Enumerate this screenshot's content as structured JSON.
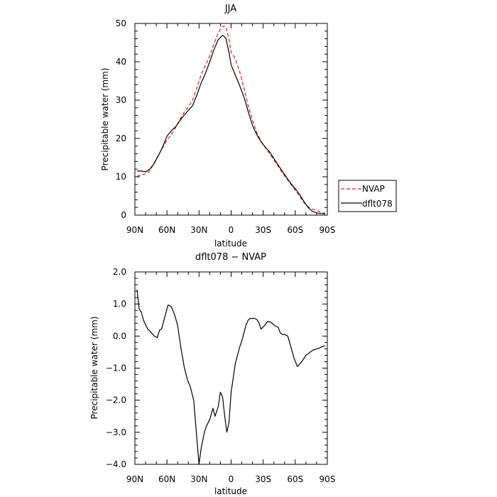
{
  "chart_data": [
    {
      "type": "line",
      "title": "JJA",
      "xlabel": "latitude",
      "ylabel": "Precipitable water (mm)",
      "xlim": [
        -90,
        90
      ],
      "ylim": [
        0,
        50
      ],
      "x_tick_values": [
        -90,
        -60,
        -30,
        0,
        30,
        60,
        90
      ],
      "x_tick_labels": [
        "90N",
        "60N",
        "30N",
        "0",
        "30S",
        "60S",
        "90S"
      ],
      "y_tick_values": [
        0,
        10,
        20,
        30,
        40,
        50
      ],
      "y_tick_labels": [
        "0",
        "10",
        "20",
        "30",
        "40",
        "50"
      ],
      "legend_position": "outside-right",
      "series": [
        {
          "name": "NVAP",
          "color": "#e41a1c",
          "style": "dashed",
          "x": [
            -88,
            -84,
            -80,
            -76,
            -72,
            -68,
            -64,
            -60,
            -56,
            -52,
            -48,
            -44,
            -40,
            -36,
            -32,
            -28,
            -24,
            -20,
            -16,
            -12,
            -8,
            -5,
            -2,
            0,
            4,
            8,
            12,
            16,
            20,
            24,
            28,
            32,
            36,
            40,
            44,
            48,
            52,
            56,
            60,
            64,
            68,
            72,
            76,
            80,
            84,
            88
          ],
          "y": [
            10.1,
            10.6,
            10.7,
            11.6,
            13.6,
            15.6,
            17.6,
            19.6,
            21.0,
            22.8,
            24.9,
            26.8,
            28.3,
            30.0,
            33.2,
            36.6,
            39.0,
            41.5,
            44.7,
            47.6,
            49.3,
            49.2,
            46.0,
            42.5,
            40.8,
            37.5,
            33.2,
            28.5,
            24.8,
            21.6,
            19.3,
            17.6,
            16.1,
            14.4,
            12.8,
            11.0,
            9.5,
            8.0,
            6.5,
            5.0,
            3.3,
            2.2,
            1.6,
            1.2,
            0.8,
            0.5
          ]
        },
        {
          "name": "dflt078",
          "color": "#000000",
          "style": "solid",
          "x": [
            -88,
            -84,
            -80,
            -76,
            -72,
            -68,
            -64,
            -60,
            -56,
            -52,
            -48,
            -44,
            -40,
            -36,
            -32,
            -28,
            -24,
            -20,
            -16,
            -12,
            -8,
            -5,
            -2,
            0,
            4,
            8,
            12,
            16,
            20,
            24,
            28,
            32,
            36,
            40,
            44,
            48,
            52,
            56,
            60,
            64,
            68,
            72,
            76,
            80,
            84,
            88
          ],
          "y": [
            11.5,
            11.5,
            11.3,
            12.0,
            13.5,
            15.5,
            17.8,
            20.6,
            22.0,
            23.0,
            24.6,
            26.1,
            27.3,
            28.6,
            31.3,
            34.5,
            37.0,
            40.0,
            43.2,
            45.8,
            46.9,
            46.2,
            42.5,
            39.2,
            36.5,
            33.8,
            30.8,
            27.0,
            23.4,
            21.0,
            19.1,
            17.7,
            16.5,
            14.8,
            13.1,
            11.4,
            9.8,
            8.2,
            6.9,
            5.4,
            3.6,
            2.0,
            1.0,
            0.6,
            0.4,
            0.3
          ]
        }
      ]
    },
    {
      "type": "line",
      "title": "dflt078 − NVAP",
      "xlabel": "latitude",
      "ylabel": "Precipitable water (mm)",
      "xlim": [
        -90,
        90
      ],
      "ylim": [
        -4,
        2
      ],
      "x_tick_values": [
        -90,
        -60,
        -30,
        0,
        30,
        60,
        90
      ],
      "x_tick_labels": [
        "90N",
        "60N",
        "30N",
        "0",
        "30S",
        "60S",
        "90S"
      ],
      "y_tick_values": [
        -4,
        -3,
        -2,
        -1,
        0,
        1,
        2
      ],
      "y_tick_labels": [
        "−4.0",
        "−3.0",
        "−2.0",
        "−1.0",
        "0.0",
        "1.0",
        "2.0"
      ],
      "series": [
        {
          "color": "#000000",
          "style": "solid",
          "x": [
            -88,
            -86,
            -84,
            -82,
            -80,
            -78,
            -75,
            -72,
            -69,
            -67,
            -65,
            -62,
            -59,
            -56,
            -53,
            -50,
            -47,
            -44,
            -41,
            -38,
            -35,
            -32,
            -30,
            -28,
            -25,
            -23,
            -20,
            -17,
            -15,
            -12,
            -10,
            -8,
            -6,
            -4,
            -2,
            0,
            2,
            4,
            6,
            8,
            10,
            12,
            14,
            16,
            18,
            20,
            22,
            24,
            26,
            28,
            31,
            34,
            37,
            40,
            42,
            44,
            46,
            48,
            50,
            53,
            56,
            59,
            62,
            64,
            66,
            68,
            70,
            72,
            74,
            76,
            78,
            80,
            82,
            84,
            86,
            88
          ],
          "y": [
            1.45,
            0.85,
            0.75,
            0.5,
            0.35,
            0.22,
            0.12,
            0.0,
            -0.05,
            0.18,
            0.22,
            0.6,
            0.97,
            0.92,
            0.68,
            0.33,
            -0.35,
            -0.95,
            -1.35,
            -1.6,
            -2.0,
            -3.2,
            -4.0,
            -3.5,
            -3.0,
            -2.8,
            -2.6,
            -2.25,
            -2.5,
            -2.2,
            -1.75,
            -1.9,
            -2.5,
            -3.0,
            -2.7,
            -1.75,
            -1.3,
            -0.85,
            -0.6,
            -0.35,
            -0.15,
            0.1,
            0.35,
            0.5,
            0.55,
            0.55,
            0.55,
            0.52,
            0.42,
            0.22,
            0.32,
            0.45,
            0.44,
            0.35,
            0.3,
            0.28,
            0.1,
            0.05,
            0.05,
            0.0,
            -0.35,
            -0.7,
            -0.95,
            -0.88,
            -0.8,
            -0.7,
            -0.6,
            -0.55,
            -0.5,
            -0.45,
            -0.42,
            -0.4,
            -0.38,
            -0.35,
            -0.32,
            -0.3
          ]
        }
      ]
    }
  ]
}
